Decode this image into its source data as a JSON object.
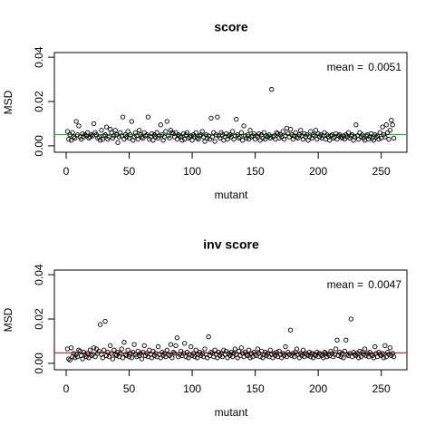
{
  "chart_data": [
    {
      "type": "scatter",
      "title": "score",
      "xlabel": "mutant",
      "ylabel": "MSD",
      "mean_label": "mean = ",
      "mean": 0.0051,
      "mean_color": "#00c800",
      "color": "#000000",
      "xlim": [
        -9.36,
        270.36
      ],
      "ylim": [
        -0.0029,
        0.0421
      ],
      "xticks": [
        0,
        50,
        100,
        150,
        200,
        250
      ],
      "yticks": [
        {
          "value": 0,
          "label": "0.00"
        },
        {
          "value": 0.02,
          "label": "0.02"
        },
        {
          "value": 0.04,
          "label": "0.04"
        }
      ],
      "x": [
        1,
        2,
        3,
        4,
        5,
        6,
        7,
        8,
        9,
        10,
        11,
        12,
        13,
        14,
        15,
        16,
        17,
        18,
        19,
        20,
        21,
        22,
        23,
        24,
        25,
        26,
        27,
        28,
        29,
        30,
        31,
        32,
        33,
        34,
        35,
        36,
        37,
        38,
        39,
        40,
        41,
        42,
        43,
        44,
        45,
        46,
        47,
        48,
        49,
        50,
        51,
        52,
        53,
        54,
        55,
        56,
        57,
        58,
        59,
        60,
        61,
        62,
        63,
        64,
        65,
        66,
        67,
        68,
        69,
        70,
        71,
        72,
        73,
        74,
        75,
        76,
        77,
        78,
        79,
        80,
        81,
        82,
        83,
        84,
        85,
        86,
        87,
        88,
        89,
        90,
        91,
        92,
        93,
        94,
        95,
        96,
        97,
        98,
        99,
        100,
        101,
        102,
        103,
        104,
        105,
        106,
        107,
        108,
        109,
        110,
        111,
        112,
        113,
        114,
        115,
        116,
        117,
        118,
        119,
        120,
        121,
        122,
        123,
        124,
        125,
        126,
        127,
        128,
        129,
        130,
        131,
        132,
        133,
        134,
        135,
        136,
        137,
        138,
        139,
        140,
        141,
        142,
        143,
        144,
        145,
        146,
        147,
        148,
        149,
        150,
        151,
        152,
        153,
        154,
        155,
        156,
        157,
        158,
        159,
        160,
        161,
        162,
        163,
        164,
        165,
        166,
        167,
        168,
        169,
        170,
        171,
        172,
        173,
        174,
        175,
        176,
        177,
        178,
        179,
        180,
        181,
        182,
        183,
        184,
        185,
        186,
        187,
        188,
        189,
        190,
        191,
        192,
        193,
        194,
        195,
        196,
        197,
        198,
        199,
        200,
        201,
        202,
        203,
        204,
        205,
        206,
        207,
        208,
        209,
        210,
        211,
        212,
        213,
        214,
        215,
        216,
        217,
        218,
        219,
        220,
        221,
        222,
        223,
        224,
        225,
        226,
        227,
        228,
        229,
        230,
        231,
        232,
        233,
        234,
        235,
        236,
        237,
        238,
        239,
        240,
        241,
        242,
        243,
        244,
        245,
        246,
        247,
        248,
        249,
        250,
        251,
        252,
        253,
        254,
        255,
        256,
        257,
        258,
        259,
        260
      ],
      "values": [
        0.0065,
        0.003,
        0.005,
        0.0025,
        0.006,
        0.004,
        0.0035,
        0.011,
        0.005,
        0.009,
        0.004,
        0.003,
        0.0055,
        0.004,
        0.005,
        0.0045,
        0.006,
        0.0035,
        0.004,
        0.005,
        0.0045,
        0.01,
        0.006,
        0.005,
        0.0035,
        0.004,
        0.0025,
        0.007,
        0.003,
        0.0045,
        0.005,
        0.0085,
        0.003,
        0.004,
        0.0075,
        0.006,
        0.0035,
        0.0045,
        0.007,
        0.005,
        0.0015,
        0.004,
        0.006,
        0.0045,
        0.013,
        0.003,
        0.005,
        0.004,
        0.0065,
        0.0035,
        0.005,
        0.011,
        0.0025,
        0.004,
        0.006,
        0.0045,
        0.003,
        0.007,
        0.005,
        0.004,
        0.0035,
        0.006,
        0.0045,
        0.005,
        0.013,
        0.003,
        0.004,
        0.0055,
        0.0025,
        0.005,
        0.004,
        0.006,
        0.0035,
        0.0045,
        0.0095,
        0.005,
        0.0025,
        0.004,
        0.0065,
        0.011,
        0.0045,
        0.0035,
        0.007,
        0.006,
        0.0055,
        0.004,
        0.006,
        0.003,
        0.005,
        0.0045,
        0.004,
        0.0025,
        0.0055,
        0.003,
        0.005,
        0.006,
        0.0035,
        0.004,
        0.0045,
        0.0025,
        0.005,
        0.004,
        0.006,
        0.0035,
        0.003,
        0.0045,
        0.005,
        0.0065,
        0.004,
        0.002,
        0.005,
        0.0035,
        0.0045,
        0.003,
        0.0125,
        0.004,
        0.006,
        0.002,
        0.005,
        0.013,
        0.0045,
        0.0035,
        0.006,
        0.005,
        0.0025,
        0.004,
        0.0055,
        0.003,
        0.0045,
        0.005,
        0.004,
        0.0065,
        0.003,
        0.0045,
        0.012,
        0.005,
        0.0035,
        0.004,
        0.006,
        0.0025,
        0.009,
        0.0045,
        0.0035,
        0.005,
        0.003,
        0.007,
        0.004,
        0.0045,
        0.0055,
        0.003,
        0.0045,
        0.004,
        0.0055,
        0.0025,
        0.005,
        0.0035,
        0.006,
        0.003,
        0.0045,
        0.004,
        0.005,
        0.0035,
        0.0255,
        0.004,
        0.0045,
        0.003,
        0.006,
        0.0055,
        0.0035,
        0.005,
        0.004,
        0.0065,
        0.003,
        0.0045,
        0.008,
        0.0055,
        0.004,
        0.0075,
        0.005,
        0.003,
        0.0045,
        0.006,
        0.004,
        0.0035,
        0.005,
        0.007,
        0.0045,
        0.003,
        0.0055,
        0.004,
        0.005,
        0.0025,
        0.004,
        0.0065,
        0.0035,
        0.005,
        0.0045,
        0.007,
        0.003,
        0.0055,
        0.004,
        0.005,
        0.0035,
        0.0045,
        0.006,
        0.003,
        0.005,
        0.004,
        0.0025,
        0.0045,
        0.005,
        0.0035,
        0.004,
        0.0055,
        0.003,
        0.0045,
        0.005,
        0.004,
        0.0035,
        0.0045,
        0.003,
        0.005,
        0.004,
        0.006,
        0.0035,
        0.0045,
        0.005,
        0.0025,
        0.004,
        0.0095,
        0.0045,
        0.003,
        0.006,
        0.004,
        0.005,
        0.0035,
        0.0025,
        0.0045,
        0.005,
        0.003,
        0.004,
        0.0055,
        0.0035,
        0.0025,
        0.005,
        0.004,
        0.0045,
        0.003,
        0.006,
        0.0035,
        0.0085,
        0.005,
        0.004,
        0.0095,
        0.006,
        0.003,
        0.007,
        0.0115,
        0.0095,
        0.0035
      ]
    },
    {
      "type": "scatter",
      "title": "inv score",
      "xlabel": "mutant",
      "ylabel": "MSD",
      "mean_label": "mean = ",
      "mean": 0.0047,
      "mean_color": "#e00000",
      "color": "#000000",
      "xlim": [
        -9.36,
        270.36
      ],
      "ylim": [
        -0.0029,
        0.0421
      ],
      "xticks": [
        0,
        50,
        100,
        150,
        200,
        250
      ],
      "yticks": [
        {
          "value": 0,
          "label": "0.00"
        },
        {
          "value": 0.02,
          "label": "0.02"
        },
        {
          "value": 0.04,
          "label": "0.04"
        }
      ],
      "x": [
        1,
        2,
        3,
        4,
        5,
        6,
        7,
        8,
        9,
        10,
        11,
        12,
        13,
        14,
        15,
        16,
        17,
        18,
        19,
        20,
        21,
        22,
        23,
        24,
        25,
        26,
        27,
        28,
        29,
        30,
        31,
        32,
        33,
        34,
        35,
        36,
        37,
        38,
        39,
        40,
        41,
        42,
        43,
        44,
        45,
        46,
        47,
        48,
        49,
        50,
        51,
        52,
        53,
        54,
        55,
        56,
        57,
        58,
        59,
        60,
        61,
        62,
        63,
        64,
        65,
        66,
        67,
        68,
        69,
        70,
        71,
        72,
        73,
        74,
        75,
        76,
        77,
        78,
        79,
        80,
        81,
        82,
        83,
        84,
        85,
        86,
        87,
        88,
        89,
        90,
        91,
        92,
        93,
        94,
        95,
        96,
        97,
        98,
        99,
        100,
        101,
        102,
        103,
        104,
        105,
        106,
        107,
        108,
        109,
        110,
        111,
        112,
        113,
        114,
        115,
        116,
        117,
        118,
        119,
        120,
        121,
        122,
        123,
        124,
        125,
        126,
        127,
        128,
        129,
        130,
        131,
        132,
        133,
        134,
        135,
        136,
        137,
        138,
        139,
        140,
        141,
        142,
        143,
        144,
        145,
        146,
        147,
        148,
        149,
        150,
        151,
        152,
        153,
        154,
        155,
        156,
        157,
        158,
        159,
        160,
        161,
        162,
        163,
        164,
        165,
        166,
        167,
        168,
        169,
        170,
        171,
        172,
        173,
        174,
        175,
        176,
        177,
        178,
        179,
        180,
        181,
        182,
        183,
        184,
        185,
        186,
        187,
        188,
        189,
        190,
        191,
        192,
        193,
        194,
        195,
        196,
        197,
        198,
        199,
        200,
        201,
        202,
        203,
        204,
        205,
        206,
        207,
        208,
        209,
        210,
        211,
        212,
        213,
        214,
        215,
        216,
        217,
        218,
        219,
        220,
        221,
        222,
        223,
        224,
        225,
        226,
        227,
        228,
        229,
        230,
        231,
        232,
        233,
        234,
        235,
        236,
        237,
        238,
        239,
        240,
        241,
        242,
        243,
        244,
        245,
        246,
        247,
        248,
        249,
        250,
        251,
        252,
        253,
        254,
        255,
        256,
        257,
        258,
        259,
        260
      ],
      "values": [
        0.0065,
        0.002,
        0.0015,
        0.007,
        0.003,
        0.0045,
        0.0025,
        0.004,
        0.003,
        0.006,
        0.0055,
        0.0035,
        0.002,
        0.005,
        0.004,
        0.003,
        0.0045,
        0.0025,
        0.006,
        0.0035,
        0.004,
        0.007,
        0.003,
        0.0065,
        0.0045,
        0.0055,
        0.0175,
        0.004,
        0.0025,
        0.006,
        0.019,
        0.0035,
        0.005,
        0.003,
        0.008,
        0.0045,
        0.002,
        0.006,
        0.004,
        0.0035,
        0.005,
        0.003,
        0.0045,
        0.0065,
        0.0025,
        0.0095,
        0.004,
        0.0035,
        0.006,
        0.003,
        0.0045,
        0.0025,
        0.005,
        0.0085,
        0.004,
        0.003,
        0.0055,
        0.0035,
        0.0045,
        0.002,
        0.005,
        0.008,
        0.0035,
        0.0045,
        0.003,
        0.006,
        0.004,
        0.0025,
        0.0055,
        0.0035,
        0.0045,
        0.003,
        0.0075,
        0.004,
        0.0025,
        0.005,
        0.0035,
        0.0045,
        0.003,
        0.006,
        0.004,
        0.0035,
        0.0085,
        0.0025,
        0.005,
        0.0045,
        0.008,
        0.0115,
        0.003,
        0.004,
        0.0055,
        0.0035,
        0.0045,
        0.009,
        0.003,
        0.005,
        0.0025,
        0.004,
        0.0075,
        0.0035,
        0.0045,
        0.003,
        0.006,
        0.0025,
        0.004,
        0.005,
        0.0035,
        0.0045,
        0.003,
        0.0065,
        0.004,
        0.0025,
        0.012,
        0.0035,
        0.005,
        0.0045,
        0.003,
        0.006,
        0.004,
        0.0025,
        0.005,
        0.0035,
        0.0045,
        0.003,
        0.006,
        0.004,
        0.0055,
        0.0025,
        0.0045,
        0.0035,
        0.005,
        0.003,
        0.0045,
        0.0065,
        0.004,
        0.0025,
        0.0055,
        0.0035,
        0.007,
        0.0045,
        0.003,
        0.005,
        0.004,
        0.0035,
        0.006,
        0.0025,
        0.0045,
        0.003,
        0.005,
        0.004,
        0.0035,
        0.0065,
        0.0045,
        0.003,
        0.0055,
        0.0025,
        0.004,
        0.005,
        0.0035,
        0.0045,
        0.003,
        0.006,
        0.004,
        0.0025,
        0.0045,
        0.0035,
        0.005,
        0.003,
        0.0055,
        0.004,
        0.0025,
        0.0045,
        0.0035,
        0.0075,
        0.003,
        0.005,
        0.004,
        0.015,
        0.0035,
        0.0045,
        0.003,
        0.005,
        0.0065,
        0.004,
        0.0025,
        0.0045,
        0.0035,
        0.006,
        0.003,
        0.0045,
        0.004,
        0.0035,
        0.005,
        0.003,
        0.0045,
        0.0025,
        0.004,
        0.0035,
        0.005,
        0.003,
        0.0045,
        0.004,
        0.0035,
        0.0025,
        0.005,
        0.0045,
        0.003,
        0.004,
        0.0035,
        0.0055,
        0.0045,
        0.003,
        0.004,
        0.0065,
        0.0105,
        0.0035,
        0.005,
        0.003,
        0.0045,
        0.0025,
        0.0055,
        0.0105,
        0.004,
        0.0035,
        0.0045,
        0.02,
        0.003,
        0.005,
        0.004,
        0.0035,
        0.0045,
        0.0025,
        0.0055,
        0.003,
        0.005,
        0.004,
        0.0065,
        0.0035,
        0.0045,
        0.003,
        0.005,
        0.004,
        0.0035,
        0.0025,
        0.0075,
        0.0045,
        0.003,
        0.005,
        0.004,
        0.0035,
        0.0045,
        0.0025,
        0.008,
        0.003,
        0.005,
        0.004,
        0.007,
        0.0035,
        0.0045,
        0.003
      ]
    }
  ]
}
